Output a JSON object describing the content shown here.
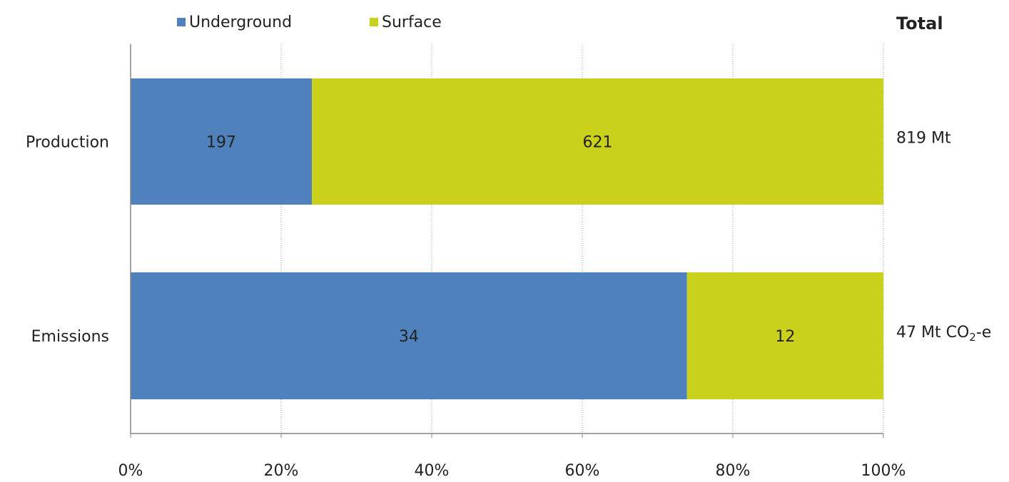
{
  "chart_data": {
    "type": "bar",
    "orientation": "horizontal",
    "stacked": "percent",
    "categories": [
      "Production",
      "Emissions"
    ],
    "series": [
      {
        "name": "Underground",
        "values": [
          197,
          34
        ],
        "color": "#4f81bd"
      },
      {
        "name": "Surface",
        "values": [
          621,
          12
        ],
        "color": "#c9d11a"
      }
    ],
    "totals_header": "Total",
    "totals": [
      {
        "label": "819 Mt",
        "sub": "",
        "suffix": ""
      },
      {
        "label": "47 Mt CO",
        "sub": "2",
        "suffix": "-e"
      }
    ],
    "xticks": [
      "0%",
      "20%",
      "40%",
      "60%",
      "80%",
      "100%"
    ],
    "xlim": [
      0,
      100
    ],
    "grid": {
      "x": true,
      "style": "dotted"
    },
    "legend_position": "top-left",
    "title": "",
    "xlabel": "",
    "ylabel": ""
  }
}
